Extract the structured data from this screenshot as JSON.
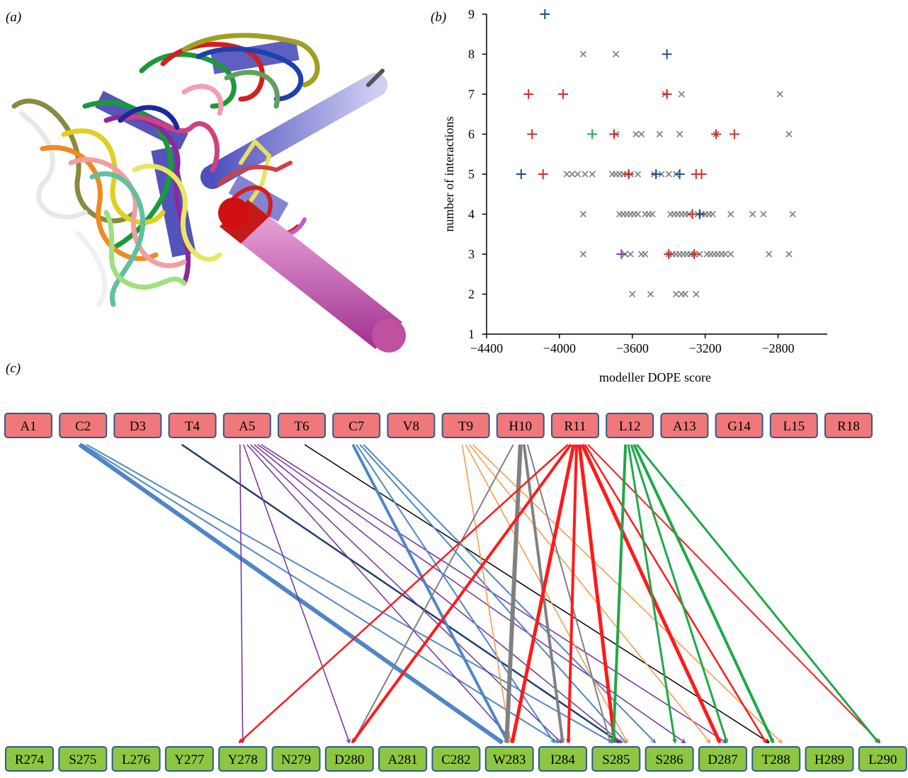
{
  "panel_labels": {
    "a": "(a)",
    "b": "(b)",
    "c": "(c)"
  },
  "chart_data": {
    "type": "scatter",
    "title": "",
    "xlabel": "modeller DOPE score",
    "ylabel": "number of interactions",
    "xlim": [
      -4400,
      -2600
    ],
    "ylim": [
      1,
      9
    ],
    "xticks": [
      -4400,
      -4000,
      -3600,
      -3200,
      -2800
    ],
    "yticks": [
      1,
      2,
      3,
      4,
      5,
      6,
      7,
      8,
      9
    ],
    "grid": false,
    "colors": {
      "grey": "#808080",
      "blue": "#1f4e8c",
      "red": "#d62b2b",
      "green": "#1fae4a",
      "purple": "#7a3fa0"
    },
    "series": [
      {
        "marker": "x",
        "color": "grey",
        "points": [
          [
            -3870,
            8
          ],
          [
            -3690,
            8
          ],
          [
            -3420,
            7
          ],
          [
            -3330,
            7
          ],
          [
            -2790,
            7
          ],
          [
            -3690,
            6
          ],
          [
            -3580,
            6
          ],
          [
            -3550,
            6
          ],
          [
            -3450,
            6
          ],
          [
            -3340,
            6
          ],
          [
            -3140,
            6
          ],
          [
            -2740,
            6
          ],
          [
            -3960,
            5
          ],
          [
            -3930,
            5
          ],
          [
            -3900,
            5
          ],
          [
            -3860,
            5
          ],
          [
            -3820,
            5
          ],
          [
            -3710,
            5
          ],
          [
            -3690,
            5
          ],
          [
            -3670,
            5
          ],
          [
            -3650,
            5
          ],
          [
            -3630,
            5
          ],
          [
            -3610,
            5
          ],
          [
            -3570,
            5
          ],
          [
            -3480,
            5
          ],
          [
            -3440,
            5
          ],
          [
            -3400,
            5
          ],
          [
            -3360,
            5
          ],
          [
            -3870,
            4
          ],
          [
            -3670,
            4
          ],
          [
            -3650,
            4
          ],
          [
            -3630,
            4
          ],
          [
            -3610,
            4
          ],
          [
            -3590,
            4
          ],
          [
            -3570,
            4
          ],
          [
            -3530,
            4
          ],
          [
            -3510,
            4
          ],
          [
            -3490,
            4
          ],
          [
            -3390,
            4
          ],
          [
            -3370,
            4
          ],
          [
            -3350,
            4
          ],
          [
            -3330,
            4
          ],
          [
            -3310,
            4
          ],
          [
            -3290,
            4
          ],
          [
            -3240,
            4
          ],
          [
            -3220,
            4
          ],
          [
            -3200,
            4
          ],
          [
            -3180,
            4
          ],
          [
            -3160,
            4
          ],
          [
            -3060,
            4
          ],
          [
            -2940,
            4
          ],
          [
            -2880,
            4
          ],
          [
            -2720,
            4
          ],
          [
            -3870,
            3
          ],
          [
            -3640,
            3
          ],
          [
            -3610,
            3
          ],
          [
            -3550,
            3
          ],
          [
            -3530,
            3
          ],
          [
            -3400,
            3
          ],
          [
            -3380,
            3
          ],
          [
            -3360,
            3
          ],
          [
            -3340,
            3
          ],
          [
            -3320,
            3
          ],
          [
            -3300,
            3
          ],
          [
            -3280,
            3
          ],
          [
            -3260,
            3
          ],
          [
            -3230,
            3
          ],
          [
            -3190,
            3
          ],
          [
            -3170,
            3
          ],
          [
            -3150,
            3
          ],
          [
            -3130,
            3
          ],
          [
            -3110,
            3
          ],
          [
            -3090,
            3
          ],
          [
            -3060,
            3
          ],
          [
            -2850,
            3
          ],
          [
            -2740,
            3
          ],
          [
            -3600,
            2
          ],
          [
            -3500,
            2
          ],
          [
            -3360,
            2
          ],
          [
            -3330,
            2
          ],
          [
            -3310,
            2
          ],
          [
            -3250,
            2
          ]
        ]
      },
      {
        "marker": "+",
        "color": "blue",
        "points": [
          [
            -4080,
            9
          ],
          [
            -3410,
            8
          ],
          [
            -4210,
            5
          ],
          [
            -3470,
            5
          ],
          [
            -3340,
            5
          ],
          [
            -3230,
            4
          ]
        ]
      },
      {
        "marker": "+",
        "color": "red",
        "points": [
          [
            -4170,
            7
          ],
          [
            -3980,
            7
          ],
          [
            -3410,
            7
          ],
          [
            -4150,
            6
          ],
          [
            -3700,
            6
          ],
          [
            -3140,
            6
          ],
          [
            -3040,
            6
          ],
          [
            -4090,
            5
          ],
          [
            -3620,
            5
          ],
          [
            -3250,
            5
          ],
          [
            -3220,
            5
          ],
          [
            -3270,
            4
          ],
          [
            -3400,
            3
          ],
          [
            -3260,
            3
          ]
        ]
      },
      {
        "marker": "+",
        "color": "green",
        "points": [
          [
            -3820,
            6
          ]
        ]
      },
      {
        "marker": "+",
        "color": "purple",
        "points": [
          [
            -3660,
            3
          ]
        ]
      }
    ]
  },
  "network": {
    "peptide_residues": [
      "A1",
      "C2",
      "D3",
      "T4",
      "A5",
      "T6",
      "C7",
      "V8",
      "T9",
      "H10",
      "R11",
      "L12",
      "A13",
      "G14",
      "L15",
      "R18"
    ],
    "receptor_residues": [
      "R274",
      "S275",
      "L276",
      "Y277",
      "Y278",
      "N279",
      "D280",
      "A281",
      "C282",
      "W283",
      "I284",
      "S285",
      "S286",
      "D287",
      "T288",
      "H289",
      "L290"
    ],
    "colors": {
      "lightblue": "#4f86c6",
      "darkblue": "#1f3f6e",
      "purple": "#7030a0",
      "black": "#000000",
      "orange": "#f79646",
      "grey": "#808080",
      "red": "#ff1a1a",
      "green": "#1fa84a"
    }
  }
}
